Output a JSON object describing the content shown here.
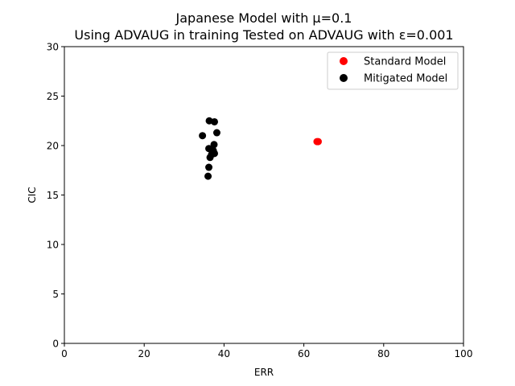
{
  "chart_data": {
    "type": "scatter",
    "title_lines": [
      "Japanese Model with μ=0.1",
      "Using ADVAUG in training Tested on ADVAUG with ε=0.001"
    ],
    "xlabel": "ERR",
    "ylabel": "CIC",
    "xlim": [
      0,
      100
    ],
    "ylim": [
      0,
      30
    ],
    "xticks": [
      0,
      20,
      40,
      60,
      80,
      100
    ],
    "yticks": [
      0,
      5,
      10,
      15,
      20,
      25,
      30
    ],
    "grid": false,
    "legend_position": "top-right",
    "series": [
      {
        "name": "Standard Model",
        "color": "#ff0000",
        "points": [
          [
            63.3,
            20.4
          ],
          [
            63.6,
            20.4
          ]
        ]
      },
      {
        "name": "Mitigated Model",
        "color": "#000000",
        "points": [
          [
            36.3,
            22.5
          ],
          [
            37.6,
            22.4
          ],
          [
            38.2,
            21.3
          ],
          [
            34.6,
            21.0
          ],
          [
            37.5,
            20.1
          ],
          [
            36.2,
            19.7
          ],
          [
            37.3,
            19.5
          ],
          [
            37.6,
            19.2
          ],
          [
            36.9,
            19.1
          ],
          [
            36.5,
            18.8
          ],
          [
            36.2,
            17.8
          ],
          [
            36.0,
            16.9
          ]
        ]
      }
    ]
  }
}
